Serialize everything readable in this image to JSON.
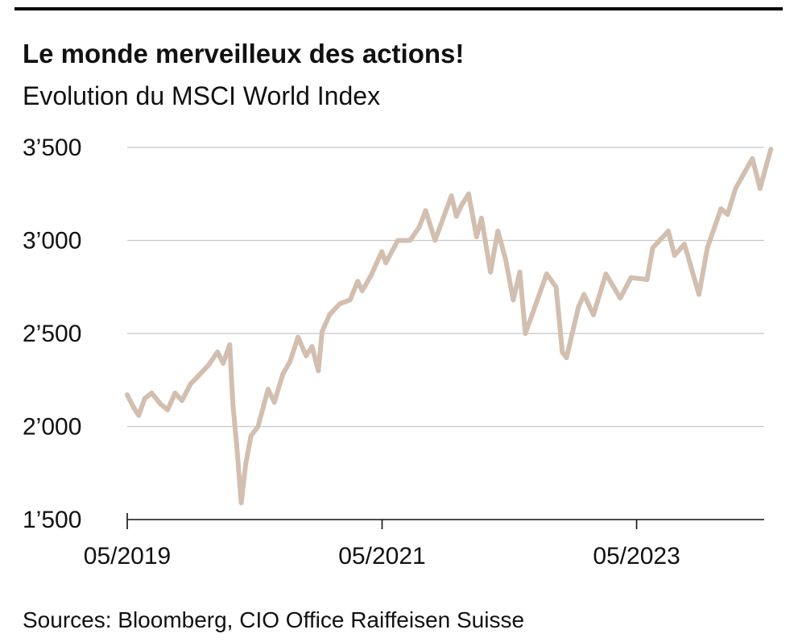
{
  "chart_data": {
    "type": "line",
    "title": "Le monde merveilleux des actions!",
    "subtitle": "Evolution du MSCI World Index",
    "source": "Sources: Bloomberg, CIO Office Raiffeisen Suisse",
    "xlabel": "",
    "ylabel": "",
    "x_range": [
      "2019-05",
      "2024-05"
    ],
    "ylim": [
      1500,
      3500
    ],
    "y_ticks": [
      {
        "value": 3500,
        "label": "3’500"
      },
      {
        "value": 3000,
        "label": "3’000"
      },
      {
        "value": 2500,
        "label": "2’500"
      },
      {
        "value": 2000,
        "label": "2’000"
      },
      {
        "value": 1500,
        "label": "1’500"
      }
    ],
    "x_ticks": [
      {
        "value": "2019-05",
        "label": "05/2019"
      },
      {
        "value": "2021-05",
        "label": "05/2021"
      },
      {
        "value": "2023-05",
        "label": "05/2023"
      }
    ],
    "grid": "horizontal",
    "line_color": "#d2bfb0",
    "series": [
      {
        "name": "",
        "points": [
          [
            "2019-05-01",
            2170
          ],
          [
            "2019-05-20",
            2100
          ],
          [
            "2019-06-03",
            2060
          ],
          [
            "2019-06-20",
            2150
          ],
          [
            "2019-07-10",
            2180
          ],
          [
            "2019-08-05",
            2120
          ],
          [
            "2019-08-25",
            2090
          ],
          [
            "2019-09-15",
            2180
          ],
          [
            "2019-10-05",
            2140
          ],
          [
            "2019-10-30",
            2230
          ],
          [
            "2019-11-20",
            2270
          ],
          [
            "2019-12-20",
            2330
          ],
          [
            "2020-01-15",
            2400
          ],
          [
            "2020-01-31",
            2340
          ],
          [
            "2020-02-19",
            2440
          ],
          [
            "2020-02-28",
            2120
          ],
          [
            "2020-03-10",
            1900
          ],
          [
            "2020-03-23",
            1590
          ],
          [
            "2020-04-05",
            1800
          ],
          [
            "2020-04-20",
            1950
          ],
          [
            "2020-05-10",
            2000
          ],
          [
            "2020-06-08",
            2200
          ],
          [
            "2020-06-26",
            2130
          ],
          [
            "2020-07-20",
            2280
          ],
          [
            "2020-08-10",
            2350
          ],
          [
            "2020-09-02",
            2480
          ],
          [
            "2020-09-25",
            2380
          ],
          [
            "2020-10-12",
            2430
          ],
          [
            "2020-10-30",
            2300
          ],
          [
            "2020-11-10",
            2510
          ],
          [
            "2020-12-01",
            2600
          ],
          [
            "2020-12-31",
            2660
          ],
          [
            "2021-01-29",
            2680
          ],
          [
            "2021-02-20",
            2780
          ],
          [
            "2021-03-05",
            2730
          ],
          [
            "2021-03-30",
            2810
          ],
          [
            "2021-04-30",
            2940
          ],
          [
            "2021-05-12",
            2880
          ],
          [
            "2021-06-15",
            3000
          ],
          [
            "2021-07-20",
            3000
          ],
          [
            "2021-08-15",
            3070
          ],
          [
            "2021-09-03",
            3160
          ],
          [
            "2021-09-30",
            3000
          ],
          [
            "2021-10-29",
            3150
          ],
          [
            "2021-11-16",
            3240
          ],
          [
            "2021-11-30",
            3130
          ],
          [
            "2021-12-15",
            3190
          ],
          [
            "2022-01-04",
            3250
          ],
          [
            "2022-01-27",
            3020
          ],
          [
            "2022-02-10",
            3120
          ],
          [
            "2022-03-08",
            2830
          ],
          [
            "2022-03-29",
            3050
          ],
          [
            "2022-04-20",
            2900
          ],
          [
            "2022-05-12",
            2680
          ],
          [
            "2022-05-31",
            2830
          ],
          [
            "2022-06-16",
            2500
          ],
          [
            "2022-07-05",
            2600
          ],
          [
            "2022-08-16",
            2820
          ],
          [
            "2022-09-12",
            2750
          ],
          [
            "2022-09-30",
            2400
          ],
          [
            "2022-10-12",
            2370
          ],
          [
            "2022-11-15",
            2640
          ],
          [
            "2022-12-01",
            2710
          ],
          [
            "2022-12-28",
            2600
          ],
          [
            "2023-02-02",
            2820
          ],
          [
            "2023-03-15",
            2690
          ],
          [
            "2023-04-15",
            2800
          ],
          [
            "2023-05-31",
            2790
          ],
          [
            "2023-06-16",
            2960
          ],
          [
            "2023-07-31",
            3050
          ],
          [
            "2023-08-18",
            2920
          ],
          [
            "2023-09-15",
            2980
          ],
          [
            "2023-10-27",
            2710
          ],
          [
            "2023-11-20",
            2960
          ],
          [
            "2023-12-29",
            3170
          ],
          [
            "2024-01-17",
            3140
          ],
          [
            "2024-02-09",
            3280
          ],
          [
            "2024-03-28",
            3440
          ],
          [
            "2024-04-19",
            3280
          ],
          [
            "2024-05-20",
            3490
          ]
        ]
      }
    ]
  },
  "footer": {
    "source": "Sources: Bloomberg, CIO Office Raiffeisen Suisse"
  }
}
